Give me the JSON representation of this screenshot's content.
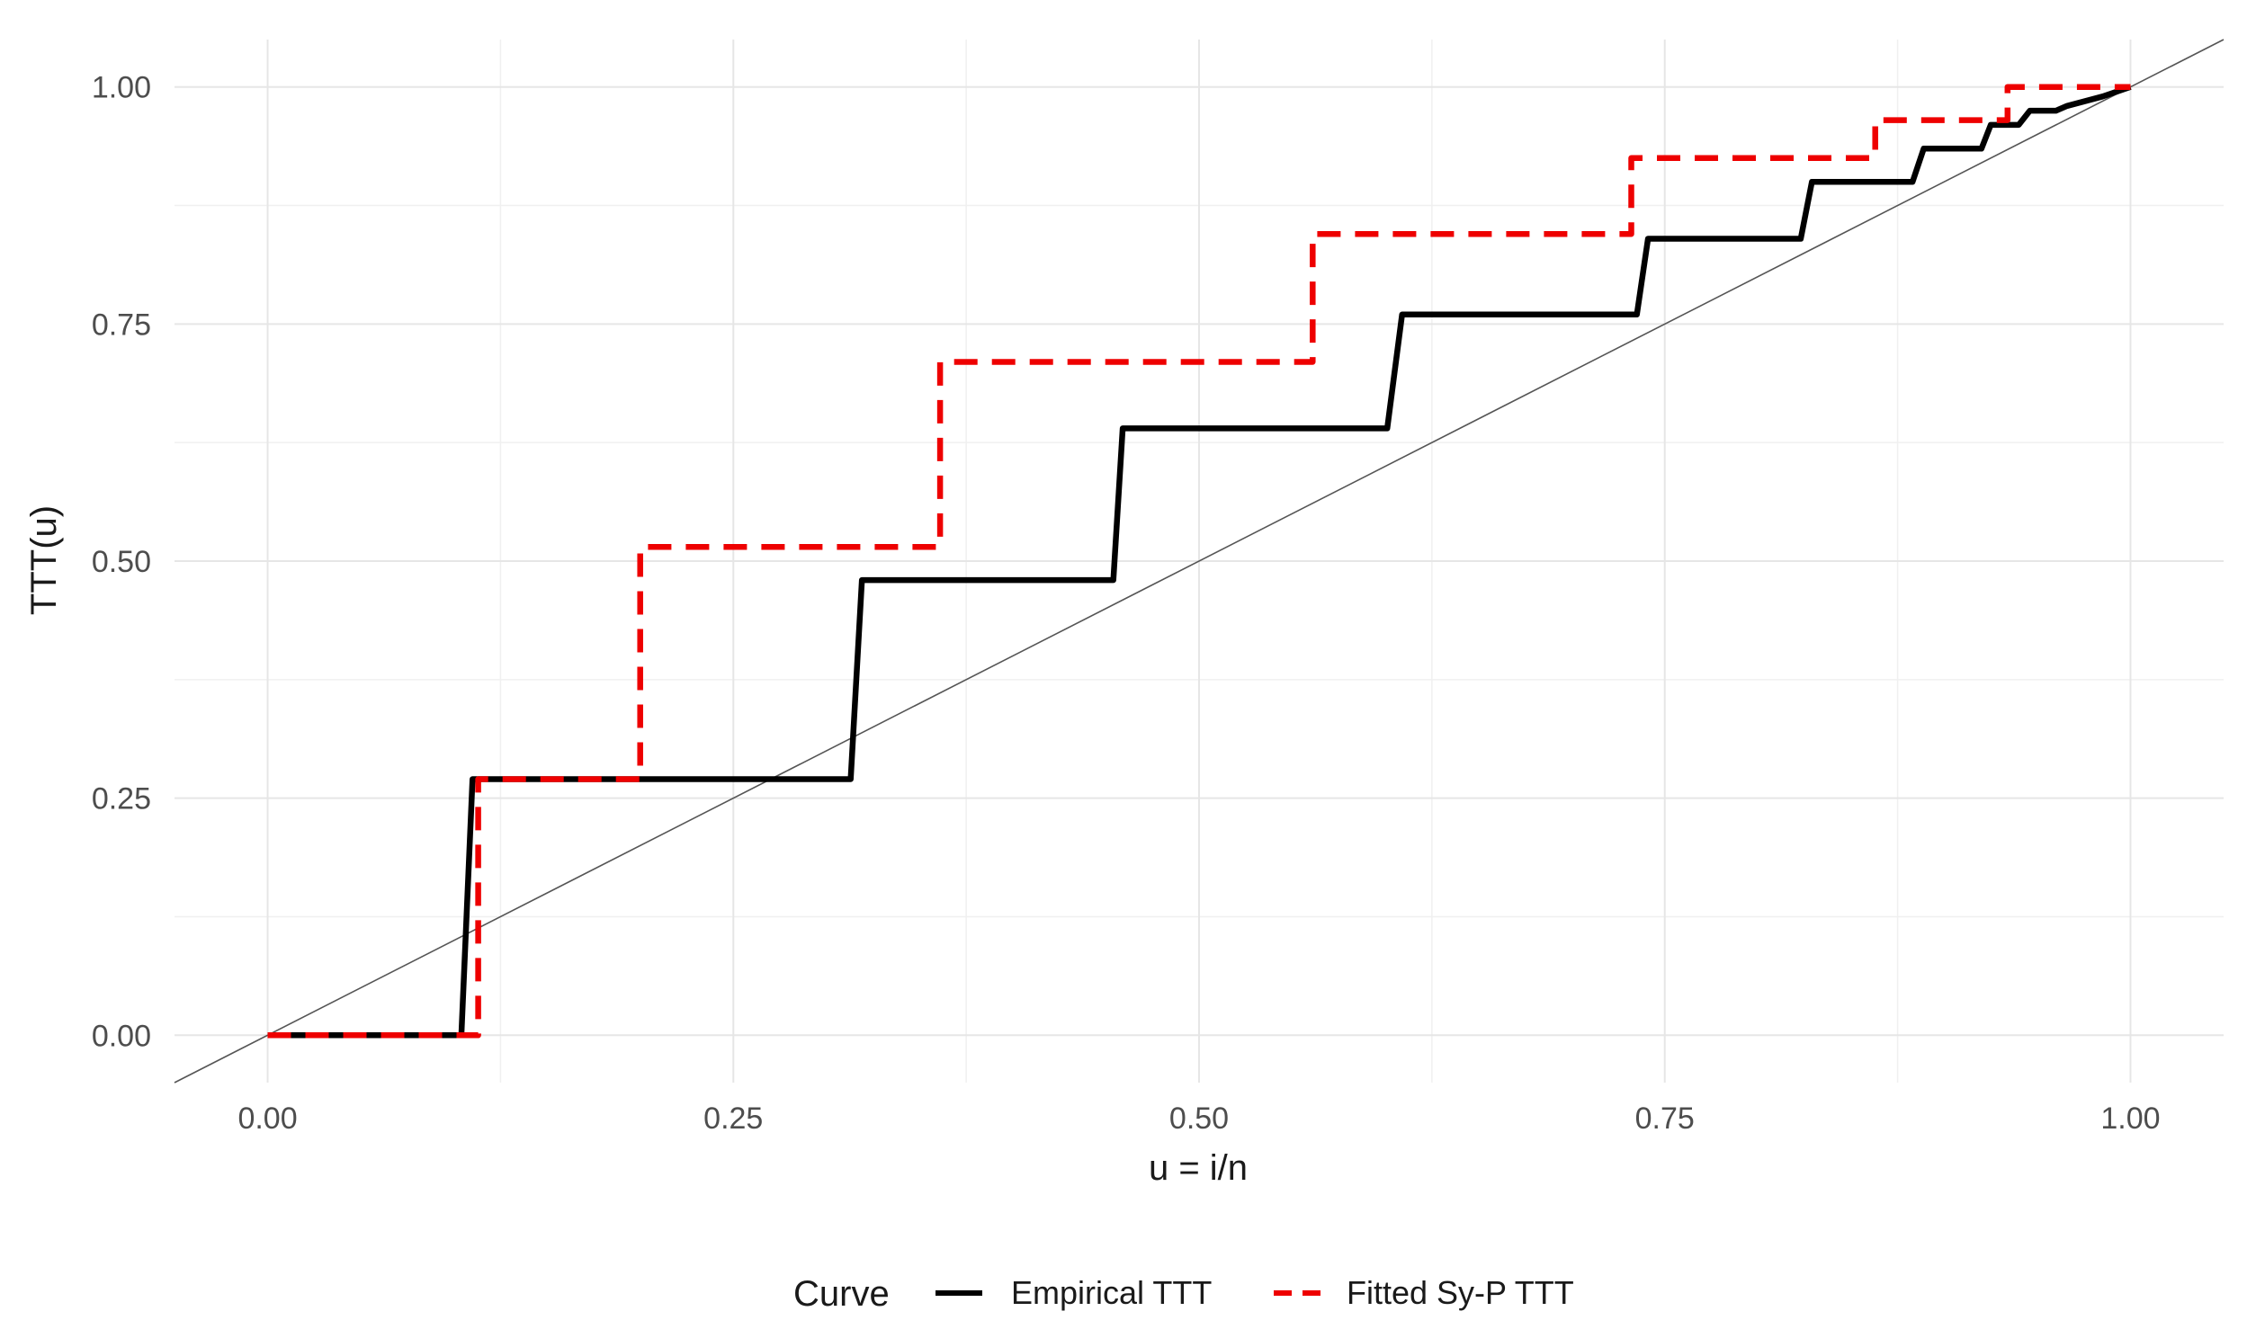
{
  "chart_data": {
    "type": "line",
    "title": "",
    "xlabel": "u = i/n",
    "ylabel": "TTT(u)",
    "xlim": [
      -0.05,
      1.05
    ],
    "ylim": [
      -0.05,
      1.05
    ],
    "x_ticks": [
      0.0,
      0.25,
      0.5,
      0.75,
      1.0
    ],
    "x_tick_labels": [
      "0.00",
      "0.25",
      "0.50",
      "0.75",
      "1.00"
    ],
    "y_ticks": [
      0.0,
      0.25,
      0.5,
      0.75,
      1.0
    ],
    "y_tick_labels": [
      "0.00",
      "0.25",
      "0.50",
      "0.75",
      "1.00"
    ],
    "grid": true,
    "legend": {
      "title": "Curve",
      "position": "bottom"
    },
    "reference_line": {
      "x": [
        -0.05,
        1.05
      ],
      "y": [
        -0.05,
        1.05
      ],
      "color": "#555555"
    },
    "series": [
      {
        "name": "Empirical TTT",
        "color": "#000000",
        "dash": "solid",
        "x": [
          0.0,
          0.104,
          0.11,
          0.313,
          0.319,
          0.454,
          0.459,
          0.601,
          0.609,
          0.735,
          0.741,
          0.823,
          0.829,
          0.883,
          0.889,
          0.92,
          0.925,
          0.94,
          0.946,
          0.96,
          0.966,
          0.985,
          1.0
        ],
        "y": [
          0.0,
          0.0,
          0.27,
          0.27,
          0.48,
          0.48,
          0.64,
          0.64,
          0.76,
          0.76,
          0.84,
          0.84,
          0.9,
          0.9,
          0.935,
          0.935,
          0.96,
          0.96,
          0.975,
          0.975,
          0.98,
          0.99,
          1.0
        ]
      },
      {
        "name": "Fitted Sy-P TTT",
        "color": "#ee0000",
        "dash": "dashed",
        "x": [
          0.0,
          0.113,
          0.113,
          0.2,
          0.2,
          0.361,
          0.361,
          0.561,
          0.561,
          0.732,
          0.732,
          0.863,
          0.863,
          0.934,
          0.934,
          1.0
        ],
        "y": [
          0.0,
          0.0,
          0.27,
          0.27,
          0.515,
          0.515,
          0.71,
          0.71,
          0.845,
          0.845,
          0.925,
          0.925,
          0.965,
          0.965,
          1.0,
          1.0
        ]
      }
    ]
  }
}
